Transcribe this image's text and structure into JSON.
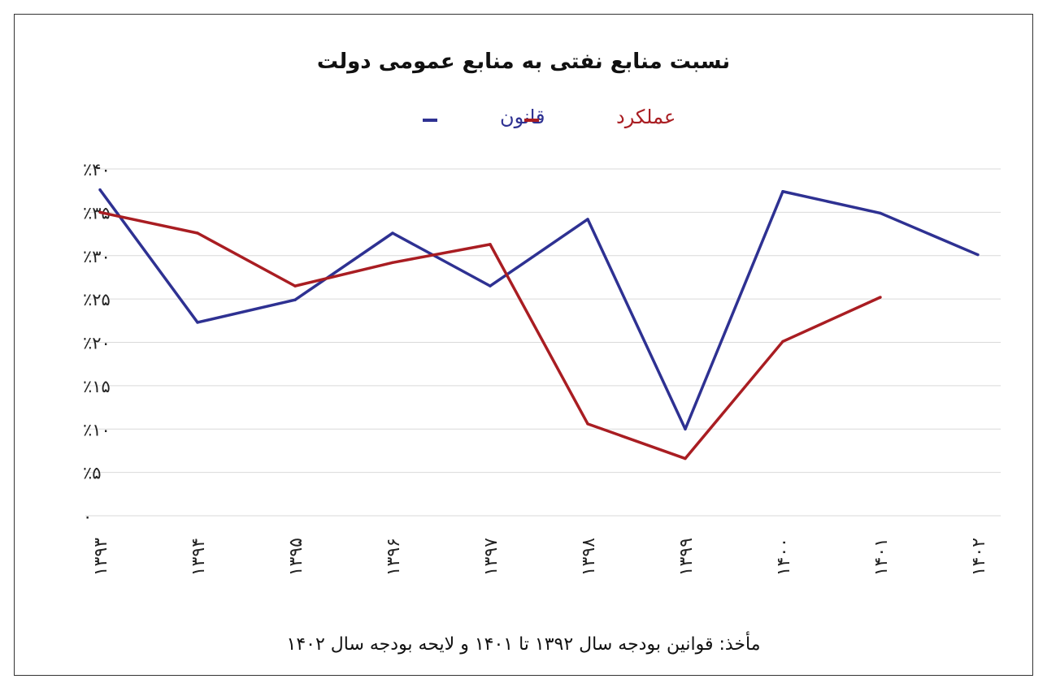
{
  "chart_data": {
    "type": "line",
    "title": "نسبت منابع نفتی به منابع عمومی دولت",
    "categories": [
      "۱۳۹۳",
      "۱۳۹۴",
      "۱۳۹۵",
      "۱۳۹۶",
      "۱۳۹۷",
      "۱۳۹۸",
      "۱۳۹۹",
      "۱۴۰۰",
      "۱۴۰۱",
      "۱۴۰۲"
    ],
    "series": [
      {
        "name": "قانون",
        "color": "#2e3192",
        "values": [
          37.6,
          22.3,
          24.9,
          32.6,
          26.5,
          34.2,
          10.0,
          37.4,
          34.9,
          30.1
        ]
      },
      {
        "name": "عملکرد",
        "color": "#a91d22",
        "values": [
          35.0,
          32.6,
          26.5,
          29.2,
          31.3,
          10.6,
          6.6,
          20.1,
          25.2,
          null
        ]
      }
    ],
    "ylim": [
      0,
      40
    ],
    "yticks": [
      0,
      5,
      10,
      15,
      20,
      25,
      30,
      35,
      40
    ],
    "ytick_labels": [
      "۰",
      "٪۵",
      "٪۱۰",
      "٪۱۵",
      "٪۲۰",
      "٪۲۵",
      "٪۳۰",
      "٪۳۵",
      "٪۴۰"
    ],
    "grid": true,
    "legend": "top-center",
    "source": "مأخذ: قوانین بودجه سال ۱۳۹۲ تا ۱۴۰۱ و لایحه بودجه سال ۱۴۰۲"
  }
}
